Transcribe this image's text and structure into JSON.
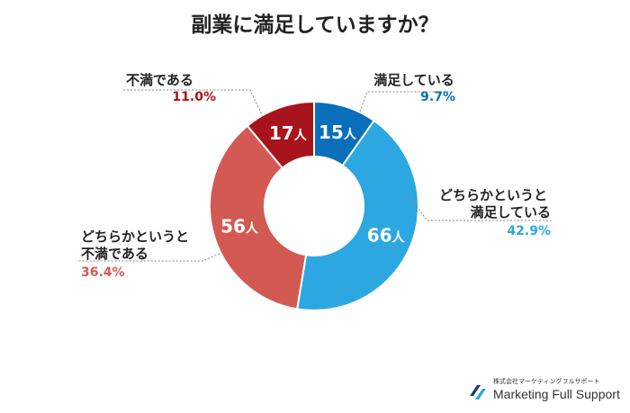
{
  "chart_data": {
    "type": "pie",
    "title": "副業に満足していますか？",
    "unit": "人",
    "slices": [
      {
        "label": "満足している",
        "count": 15,
        "percent": "9.7%",
        "color": "#0a6fba"
      },
      {
        "label": "どちらかというと満足している",
        "count": 66,
        "percent": "42.9%",
        "color": "#2da7e2"
      },
      {
        "label": "どちらかというと不満である",
        "count": 56,
        "percent": "36.4%",
        "color": "#d35a52"
      },
      {
        "label": "不満である",
        "count": 17,
        "percent": "11.0%",
        "color": "#a8141c"
      }
    ]
  },
  "labels": {
    "s1_line1": "満足している",
    "s1_pct": "9.7%",
    "s2_line1": "どちらかというと",
    "s2_line2": "満足している",
    "s2_pct": "42.9%",
    "s3_line1": "どちらかというと",
    "s3_line2": "不満である",
    "s3_pct": "36.4%",
    "s4_line1": "不満である",
    "s4_pct": "11.0%"
  },
  "brand": {
    "company": "株式会社マーケティングフルサポート",
    "name": "Marketing Full Support"
  }
}
